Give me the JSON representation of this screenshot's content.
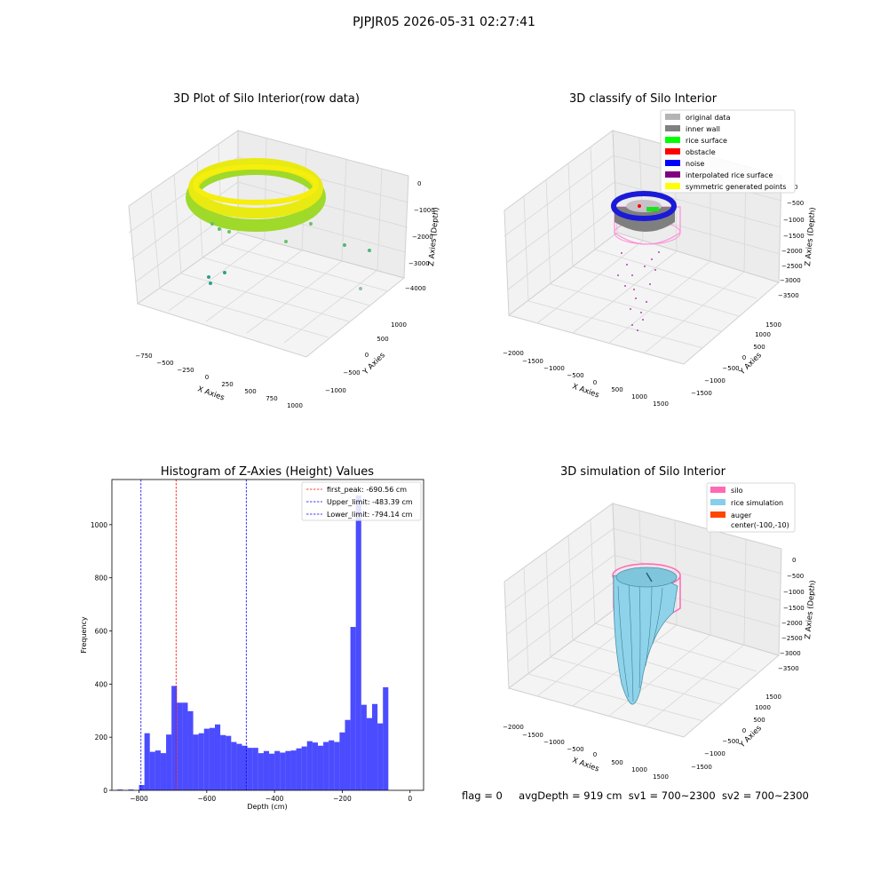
{
  "suptitle": "PJPJR05 2026-05-31 02:27:41",
  "footer": {
    "flag": "flag = 0",
    "avg_depth": "avgDepth = 919 cm",
    "sv1": "sv1 = 700~2300",
    "sv2": "sv2 = 700~2300"
  },
  "panels": {
    "raw": {
      "title": "3D Plot of Silo Interior(row data)",
      "xlabel": "X Axies",
      "ylabel": "Y Axies",
      "zlabel": "Z Axies (Depth)",
      "x_ticks": [
        "−750",
        "−500",
        "−250",
        "0",
        "250",
        "500",
        "750",
        "1000"
      ],
      "y_ticks": [
        "−1000",
        "−500",
        "0",
        "500",
        "1000"
      ],
      "z_ticks": [
        "0",
        "−1000",
        "−2000",
        "−3000",
        "−4000"
      ]
    },
    "classify": {
      "title": "3D classify of Silo Interior",
      "xlabel": "X Axies",
      "ylabel": "Y Axies",
      "zlabel": "Z Axies (Depth)",
      "x_ticks": [
        "−2000",
        "−1500",
        "−1000",
        "−500",
        "0",
        "500",
        "1000",
        "1500"
      ],
      "y_ticks": [
        "−1500",
        "−1000",
        "−500",
        "0",
        "500",
        "1000",
        "1500"
      ],
      "z_ticks": [
        "0",
        "−500",
        "−1000",
        "−1500",
        "−2000",
        "−2500",
        "−3000",
        "−3500"
      ],
      "legend": [
        {
          "label": "original data",
          "color": "#b4b4b4"
        },
        {
          "label": "inner wall",
          "color": "#808080"
        },
        {
          "label": "rice surface",
          "color": "#00ff00"
        },
        {
          "label": "obstacle",
          "color": "#ff0000"
        },
        {
          "label": "noise",
          "color": "#0000ff"
        },
        {
          "label": "interpolated rice surface",
          "color": "#800080"
        },
        {
          "label": "symmetric generated points",
          "color": "#ffff00"
        }
      ]
    },
    "simulation": {
      "title": "3D simulation of Silo Interior",
      "xlabel": "X Axies",
      "ylabel": "Y Axies",
      "zlabel": "Z Axies (Depth)",
      "x_ticks": [
        "−2000",
        "−1500",
        "−1000",
        "−500",
        "0",
        "500",
        "1000",
        "1500"
      ],
      "y_ticks": [
        "−1500",
        "−1000",
        "−500",
        "0",
        "500",
        "1000",
        "1500"
      ],
      "z_ticks": [
        "0",
        "−500",
        "−1000",
        "−1500",
        "−2000",
        "−2500",
        "−3000",
        "−3500"
      ],
      "legend": [
        {
          "label": "silo",
          "color": "#ff69b4"
        },
        {
          "label": "rice simulation",
          "color": "#87ceeb"
        },
        {
          "label": "auger",
          "color": "#ff4500"
        },
        {
          "label": "center(-100,-10)",
          "color": ""
        }
      ]
    }
  },
  "chart_data": [
    {
      "type": "scatter",
      "title": "3D Plot of Silo Interior(row data)",
      "xlabel": "X Axies",
      "ylabel": "Y Axies",
      "zlabel": "Z Axies (Depth)",
      "note_points": "3D point cloud forming a ring near Z ≈ 0 to −1000 with a few scattered points deeper",
      "xlim": [
        -900,
        1050
      ],
      "ylim": [
        -1250,
        1250
      ],
      "zlim": [
        -4500,
        200
      ]
    },
    {
      "type": "scatter",
      "title": "3D classify of Silo Interior",
      "xlabel": "X Axies",
      "ylabel": "Y Axies",
      "zlabel": "Z Axies (Depth)",
      "series": [
        {
          "name": "original data"
        },
        {
          "name": "inner wall"
        },
        {
          "name": "rice surface"
        },
        {
          "name": "obstacle"
        },
        {
          "name": "noise"
        },
        {
          "name": "interpolated rice surface"
        },
        {
          "name": "symmetric generated points"
        }
      ],
      "xlim": [
        -2100,
        1700
      ],
      "ylim": [
        -1700,
        1700
      ],
      "zlim": [
        -3700,
        200
      ]
    },
    {
      "type": "bar",
      "title": "Histogram of Z-Axies (Height) Values",
      "xlabel": "Depth (cm)",
      "ylabel": "Frequency",
      "xlim": [
        -880,
        40
      ],
      "ylim": [
        0,
        1170
      ],
      "x_ticks": [
        -800,
        -600,
        -400,
        -200,
        0
      ],
      "y_ticks": [
        0,
        200,
        400,
        600,
        800,
        1000
      ],
      "bin_width": 16,
      "bins_start": [
        -864,
        -848,
        -832,
        -816,
        -800,
        -784,
        -768,
        -752,
        -736,
        -720,
        -704,
        -688,
        -672,
        -656,
        -640,
        -624,
        -608,
        -592,
        -576,
        -560,
        -544,
        -528,
        -512,
        -496,
        -480,
        -464,
        -448,
        -432,
        -416,
        -400,
        -384,
        -368,
        -352,
        -336,
        -320,
        -304,
        -288,
        -272,
        -256,
        -240,
        -224,
        -208,
        -192,
        -176,
        -160,
        -144,
        -128,
        -112,
        -96,
        -80,
        -64,
        -48,
        -32,
        -16
      ],
      "values": [
        3,
        0,
        3,
        0,
        20,
        215,
        145,
        150,
        140,
        210,
        393,
        330,
        330,
        298,
        210,
        215,
        232,
        235,
        248,
        208,
        205,
        182,
        175,
        168,
        160,
        160,
        140,
        148,
        138,
        148,
        142,
        148,
        150,
        158,
        165,
        185,
        180,
        168,
        182,
        188,
        182,
        218,
        265,
        615,
        1110,
        322,
        272,
        325,
        252,
        388,
        0,
        0,
        0,
        0
      ],
      "color": "#0000ff",
      "vlines": [
        {
          "name": "first_peak: -690.56 cm",
          "x": -690.56,
          "color": "#ff0000"
        },
        {
          "name": "Upper_limit: -483.39 cm",
          "x": -483.39,
          "color": "#0000ff"
        },
        {
          "name": "Lower_limit: -794.14 cm",
          "x": -794.14,
          "color": "#0000ff"
        }
      ],
      "legend_position": "top-right"
    },
    {
      "type": "surface",
      "title": "3D simulation of Silo Interior",
      "xlabel": "X Axies",
      "ylabel": "Y Axies",
      "zlabel": "Z Axies (Depth)",
      "series": [
        {
          "name": "silo"
        },
        {
          "name": "rice simulation"
        },
        {
          "name": "auger"
        },
        {
          "name": "center(-100,-10)"
        }
      ],
      "xlim": [
        -2100,
        1700
      ],
      "ylim": [
        -1700,
        1700
      ],
      "zlim": [
        -3700,
        200
      ]
    }
  ]
}
